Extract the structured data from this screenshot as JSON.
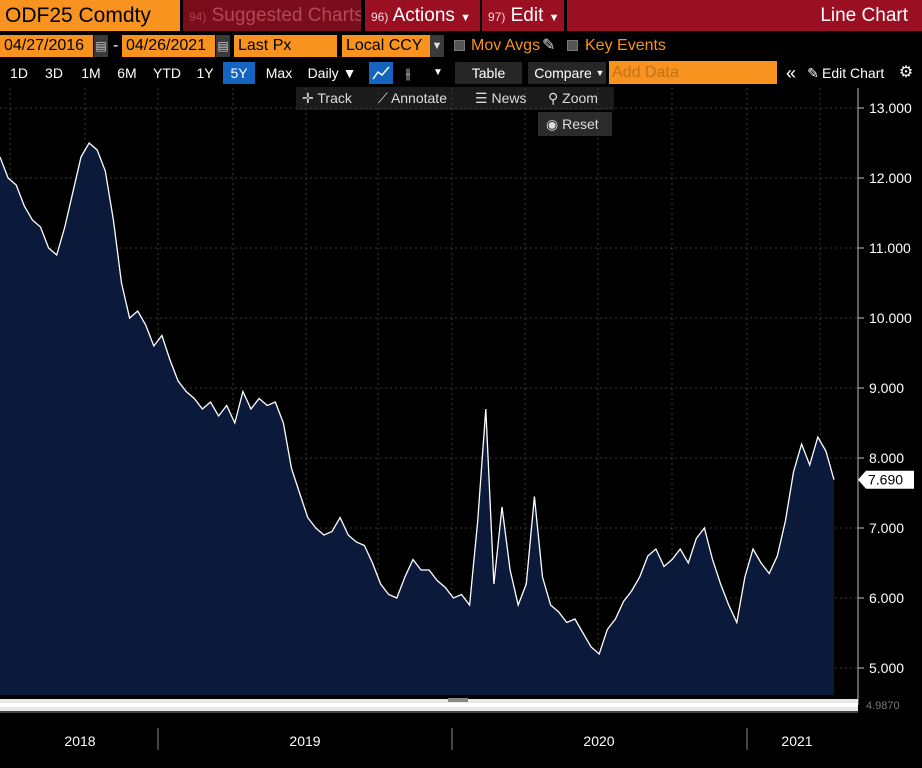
{
  "header": {
    "ticker": "ODF25 Comdty",
    "suggested_charts": "Suggested Charts",
    "suggested_num": "94)",
    "actions": "Actions",
    "actions_num": "96)",
    "edit": "Edit",
    "edit_num": "97)",
    "chart_title": "Line Chart",
    "accent_color": "#f7931e",
    "bar_color": "#9b0f22"
  },
  "range": {
    "start": "04/27/2016",
    "end": "04/26/2021",
    "field": "Last Px",
    "currency": "Local CCY",
    "mov_avgs": "Mov Avgs",
    "key_events": "Key Events"
  },
  "toolbar": {
    "periods": [
      "1D",
      "3D",
      "1M",
      "6M",
      "YTD",
      "1Y",
      "5Y",
      "Max"
    ],
    "active_period": "5Y",
    "frequency": "Daily ▼",
    "table": "Table",
    "compare": "Compare",
    "add_data_placeholder": "Add Data",
    "edit_chart": "Edit Chart"
  },
  "tools": {
    "track": "Track",
    "annotate": "Annotate",
    "news": "News",
    "zoom": "Zoom",
    "reset": "Reset"
  },
  "chart_data": {
    "type": "area",
    "y_ticks": [
      "13.000",
      "12.000",
      "11.000",
      "10.000",
      "9.000",
      "8.000",
      "7.000",
      "6.000",
      "5.000"
    ],
    "ylim": [
      4.6,
      13.2
    ],
    "x_labels": [
      "2018",
      "2019",
      "2020",
      "2021"
    ],
    "last_value": "7.690",
    "axis_clip": "4.9870",
    "grid": true,
    "line_color": "#ffffff",
    "fill_color": "#0b1a3a",
    "series": [
      {
        "values": [
          12.3,
          12.0,
          11.9,
          11.6,
          11.4,
          11.3,
          11.0,
          10.9,
          11.3,
          11.8,
          12.3,
          12.5,
          12.4,
          12.1,
          11.4,
          10.5,
          10.0,
          10.1,
          9.9,
          9.6,
          9.75,
          9.4,
          9.1,
          8.95,
          8.85,
          8.7,
          8.8,
          8.6,
          8.75,
          8.5,
          8.95,
          8.7,
          8.85,
          8.75,
          8.8,
          8.5,
          7.85,
          7.5,
          7.15,
          7.0,
          6.9,
          6.95,
          7.15,
          6.9,
          6.8,
          6.75,
          6.5,
          6.2,
          6.05,
          6.0,
          6.3,
          6.55,
          6.4,
          6.4,
          6.25,
          6.15,
          6.0,
          6.05,
          5.9,
          7.1,
          8.7,
          6.2,
          7.3,
          6.4,
          5.9,
          6.2,
          7.45,
          6.3,
          5.9,
          5.8,
          5.65,
          5.7,
          5.5,
          5.3,
          5.2,
          5.55,
          5.7,
          5.95,
          6.1,
          6.3,
          6.6,
          6.7,
          6.45,
          6.55,
          6.7,
          6.5,
          6.85,
          7.0,
          6.55,
          6.2,
          5.9,
          5.65,
          6.3,
          6.7,
          6.5,
          6.35,
          6.6,
          7.1,
          7.8,
          8.2,
          7.9,
          8.3,
          8.1,
          7.69
        ]
      }
    ]
  }
}
